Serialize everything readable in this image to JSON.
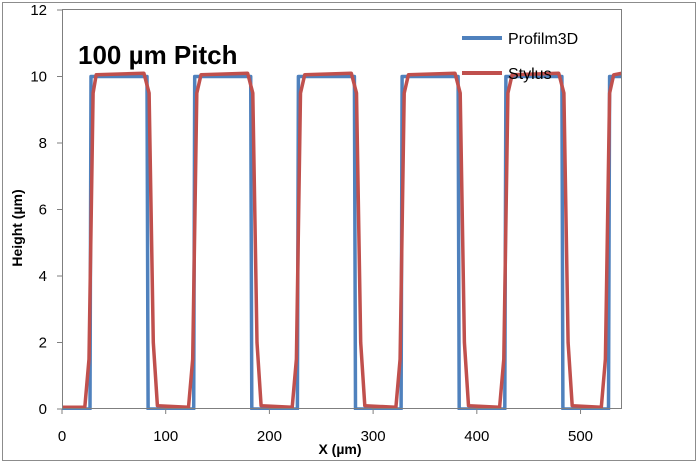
{
  "chart_data": {
    "type": "line",
    "title": "100 µm Pitch",
    "xlabel": "X (µm)",
    "ylabel": "Height  (µm)",
    "xlim": [
      0,
      540
    ],
    "ylim": [
      0,
      12
    ],
    "xticks": [
      0,
      100,
      200,
      300,
      400,
      500
    ],
    "yticks": [
      0,
      2,
      4,
      6,
      8,
      10,
      12
    ],
    "grid": false,
    "legend_position": "top-right",
    "series": [
      {
        "name": "Profilm3D",
        "color": "#4f81bd",
        "points": [
          [
            0,
            0
          ],
          [
            27,
            0
          ],
          [
            28,
            10
          ],
          [
            82,
            10
          ],
          [
            83,
            0
          ],
          [
            127,
            0
          ],
          [
            128,
            10
          ],
          [
            182,
            10
          ],
          [
            183,
            0
          ],
          [
            227,
            0
          ],
          [
            228,
            10
          ],
          [
            282,
            10
          ],
          [
            283,
            0
          ],
          [
            327,
            0
          ],
          [
            328,
            10
          ],
          [
            382,
            10
          ],
          [
            383,
            0
          ],
          [
            427,
            0
          ],
          [
            428,
            10
          ],
          [
            482,
            10
          ],
          [
            483,
            0
          ],
          [
            527,
            0
          ],
          [
            528,
            10
          ],
          [
            540,
            10
          ]
        ]
      },
      {
        "name": "Stylus",
        "color": "#c0504d",
        "points": [
          [
            0,
            0.05
          ],
          [
            22,
            0.05
          ],
          [
            26,
            1.5
          ],
          [
            30,
            9.5
          ],
          [
            33,
            10.05
          ],
          [
            79,
            10.1
          ],
          [
            84,
            9.5
          ],
          [
            88,
            2
          ],
          [
            92,
            0.1
          ],
          [
            122,
            0.05
          ],
          [
            126,
            1.5
          ],
          [
            130,
            9.5
          ],
          [
            134,
            10.05
          ],
          [
            179,
            10.1
          ],
          [
            184,
            9.5
          ],
          [
            188,
            2
          ],
          [
            192,
            0.1
          ],
          [
            222,
            0.05
          ],
          [
            226,
            1.5
          ],
          [
            230,
            9.5
          ],
          [
            234,
            10.05
          ],
          [
            279,
            10.1
          ],
          [
            284,
            9.5
          ],
          [
            288,
            2
          ],
          [
            292,
            0.1
          ],
          [
            322,
            0.05
          ],
          [
            326,
            1.5
          ],
          [
            330,
            9.5
          ],
          [
            334,
            10.05
          ],
          [
            379,
            10.1
          ],
          [
            384,
            9.5
          ],
          [
            388,
            2
          ],
          [
            392,
            0.1
          ],
          [
            422,
            0.05
          ],
          [
            426,
            1.5
          ],
          [
            430,
            9.5
          ],
          [
            434,
            10.05
          ],
          [
            479,
            10.1
          ],
          [
            484,
            9.5
          ],
          [
            488,
            2
          ],
          [
            492,
            0.1
          ],
          [
            520,
            0.05
          ],
          [
            524,
            1.5
          ],
          [
            528,
            9.5
          ],
          [
            532,
            10.05
          ],
          [
            540,
            10.1
          ]
        ]
      }
    ]
  }
}
